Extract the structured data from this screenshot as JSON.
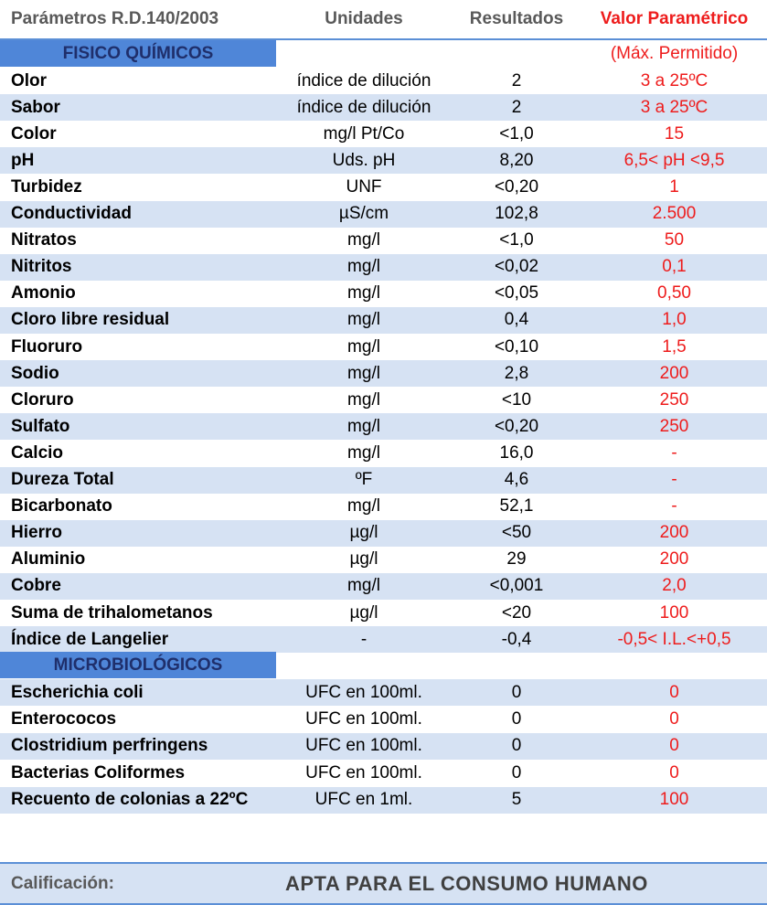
{
  "header": {
    "param": "Parámetros R.D.140/2003",
    "units": "Unidades",
    "results": "Resultados",
    "limit": "Valor Paramétrico"
  },
  "section1": {
    "label": "FISICO QUÍMICOS",
    "note": "(Máx. Permitido)"
  },
  "fisico_rows": [
    {
      "name": "Olor",
      "unit": "índice de dilución",
      "result": "2",
      "limit": "3 a 25ºC"
    },
    {
      "name": "Sabor",
      "unit": "índice de dilución",
      "result": "2",
      "limit": "3 a 25ºC"
    },
    {
      "name": "Color",
      "unit": "mg/l Pt/Co",
      "result": "<1,0",
      "limit": "15"
    },
    {
      "name": "pH",
      "unit": "Uds. pH",
      "result": "8,20",
      "limit": "6,5< pH <9,5"
    },
    {
      "name": "Turbidez",
      "unit": "UNF",
      "result": "<0,20",
      "limit": "1"
    },
    {
      "name": "Conductividad",
      "unit": "µS/cm",
      "result": "102,8",
      "limit": "2.500"
    },
    {
      "name": "Nitratos",
      "unit": "mg/l",
      "result": "<1,0",
      "limit": "50"
    },
    {
      "name": "Nitritos",
      "unit": "mg/l",
      "result": "<0,02",
      "limit": "0,1"
    },
    {
      "name": "Amonio",
      "unit": "mg/l",
      "result": "<0,05",
      "limit": "0,50"
    },
    {
      "name": "Cloro libre residual",
      "unit": "mg/l",
      "result": "0,4",
      "limit": "1,0"
    },
    {
      "name": "Fluoruro",
      "unit": "mg/l",
      "result": "<0,10",
      "limit": "1,5"
    },
    {
      "name": "Sodio",
      "unit": "mg/l",
      "result": "2,8",
      "limit": "200"
    },
    {
      "name": "Cloruro",
      "unit": "mg/l",
      "result": "<10",
      "limit": "250"
    },
    {
      "name": "Sulfato",
      "unit": "mg/l",
      "result": "<0,20",
      "limit": "250"
    },
    {
      "name": "Calcio",
      "unit": "mg/l",
      "result": "16,0",
      "limit": "-"
    },
    {
      "name": "Dureza Total",
      "unit": "ºF",
      "result": "4,6",
      "limit": "-"
    },
    {
      "name": "Bicarbonato",
      "unit": "mg/l",
      "result": "52,1",
      "limit": "-"
    },
    {
      "name": "Hierro",
      "unit": "µg/l",
      "result": "<50",
      "limit": "200"
    },
    {
      "name": "Aluminio",
      "unit": "µg/l",
      "result": "29",
      "limit": "200"
    },
    {
      "name": "Cobre",
      "unit": "mg/l",
      "result": "<0,001",
      "limit": "2,0"
    },
    {
      "name": "Suma de trihalometanos",
      "unit": "µg/l",
      "result": "<20",
      "limit": "100"
    },
    {
      "name": "Índice de Langelier",
      "unit": "-",
      "result": "-0,4",
      "limit": "-0,5< I.L.<+0,5"
    }
  ],
  "section2": {
    "label": "MICROBIOLÓGICOS"
  },
  "micro_rows": [
    {
      "name": "Escherichia coli",
      "unit": "UFC en 100ml.",
      "result": "0",
      "limit": "0"
    },
    {
      "name": "Enterococos",
      "unit": "UFC en 100ml.",
      "result": "0",
      "limit": "0"
    },
    {
      "name": "Clostridium perfringens",
      "unit": "UFC en 100ml.",
      "result": "0",
      "limit": "0"
    },
    {
      "name": "Bacterias Coliformes",
      "unit": "UFC en 100ml.",
      "result": "0",
      "limit": "0"
    },
    {
      "name": "Recuento de colonias a 22ºC",
      "unit": "UFC en 1ml.",
      "result": "5",
      "limit": "100"
    }
  ],
  "calificacion": {
    "label": "Calificación:",
    "value": "APTA PARA EL CONSUMO HUMANO"
  },
  "colors": {
    "accent_blue": "#4f86d8",
    "stripe": "#d6e2f3",
    "limit_red": "#ee1c1c"
  }
}
